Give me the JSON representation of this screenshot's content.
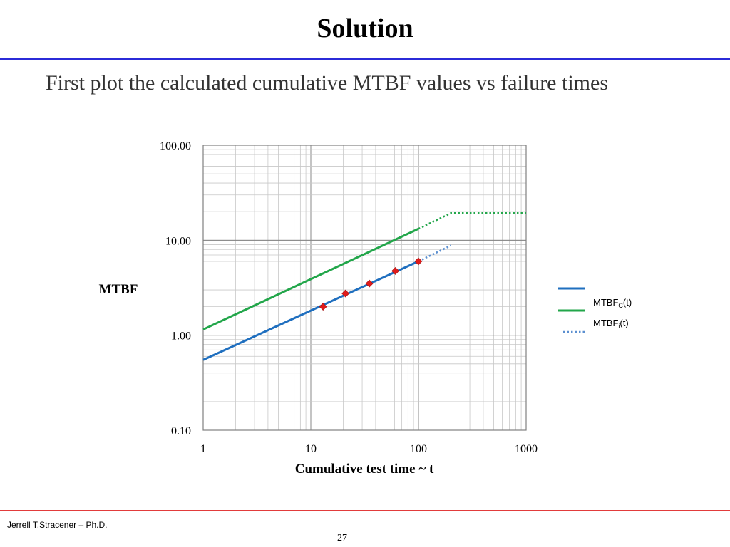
{
  "slide": {
    "title": "Solution",
    "subtitle": "First plot the calculated cumulative MTBF values vs failure times",
    "author": "Jerrell T.Stracener – Ph.D.",
    "page_number": "27"
  },
  "chart_data": {
    "type": "line",
    "xscale": "log",
    "yscale": "log",
    "xlim": [
      1,
      1000
    ],
    "ylim": [
      0.1,
      100
    ],
    "grid": true,
    "xlabel": "Cumulative test time ~ t",
    "ylabel": "MTBF",
    "x_ticks": [
      "1",
      "10",
      "100",
      "1000"
    ],
    "y_ticks": [
      "0.10",
      "1.00",
      "10.00",
      "100.00"
    ],
    "legend_position": "right",
    "legend": [
      {
        "main": "MTBF",
        "sub": "C",
        "suffix": "(t)"
      },
      {
        "main": "MTBF",
        "sub": "i",
        "suffix": "(t)"
      }
    ],
    "series": [
      {
        "color": "#1f6fbf",
        "style": "solid",
        "x": [
          1,
          100
        ],
        "y": [
          0.55,
          6.0
        ]
      },
      {
        "color": "#5b8fd0",
        "style": "dotted",
        "x": [
          100,
          200
        ],
        "y": [
          6.0,
          8.8
        ]
      },
      {
        "color": "#22a64a",
        "style": "solid",
        "x": [
          1,
          100
        ],
        "y": [
          1.15,
          13.2
        ]
      },
      {
        "color": "#22a64a",
        "style": "dotted",
        "x": [
          100,
          200,
          1000
        ],
        "y": [
          13.2,
          19.3,
          19.3
        ]
      }
    ],
    "points": {
      "color": "#e01b1b",
      "x": [
        13,
        21,
        35,
        61,
        100
      ],
      "y": [
        2.0,
        2.75,
        3.5,
        4.75,
        6.0
      ]
    }
  }
}
